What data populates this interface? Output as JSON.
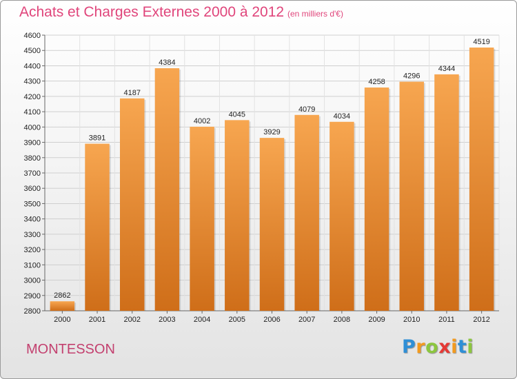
{
  "header": {
    "title": "Achats et Charges Externes 2000 à 2012",
    "subtitle": "(en milliers d'€)"
  },
  "footer": {
    "commune": "MONTESSON",
    "logo": [
      "P",
      "r",
      "o",
      "x",
      "i",
      "t",
      "i"
    ],
    "logo_colors": [
      "#2f8fd6",
      "#f29a1f",
      "#8cc63f",
      "#e53935",
      "#f29a1f",
      "#2f8fd6",
      "#8cc63f"
    ]
  },
  "chart_data": {
    "type": "bar",
    "title": "Achats et Charges Externes 2000 à 2012",
    "categories": [
      "2000",
      "2001",
      "2002",
      "2003",
      "2004",
      "2005",
      "2006",
      "2007",
      "2008",
      "2009",
      "2010",
      "2011",
      "2012"
    ],
    "values": [
      2862,
      3891,
      4187,
      4384,
      4002,
      4045,
      3929,
      4079,
      4034,
      4258,
      4296,
      4344,
      4519
    ],
    "ylim": [
      2800,
      4600
    ],
    "yticks": [
      2800,
      2900,
      3000,
      3100,
      3200,
      3300,
      3400,
      3500,
      3600,
      3700,
      3800,
      3900,
      4000,
      4100,
      4200,
      4300,
      4400,
      4500,
      4600
    ],
    "grid": true,
    "bar_color_top": "#f7a650",
    "bar_color_bottom": "#cf6e19"
  }
}
